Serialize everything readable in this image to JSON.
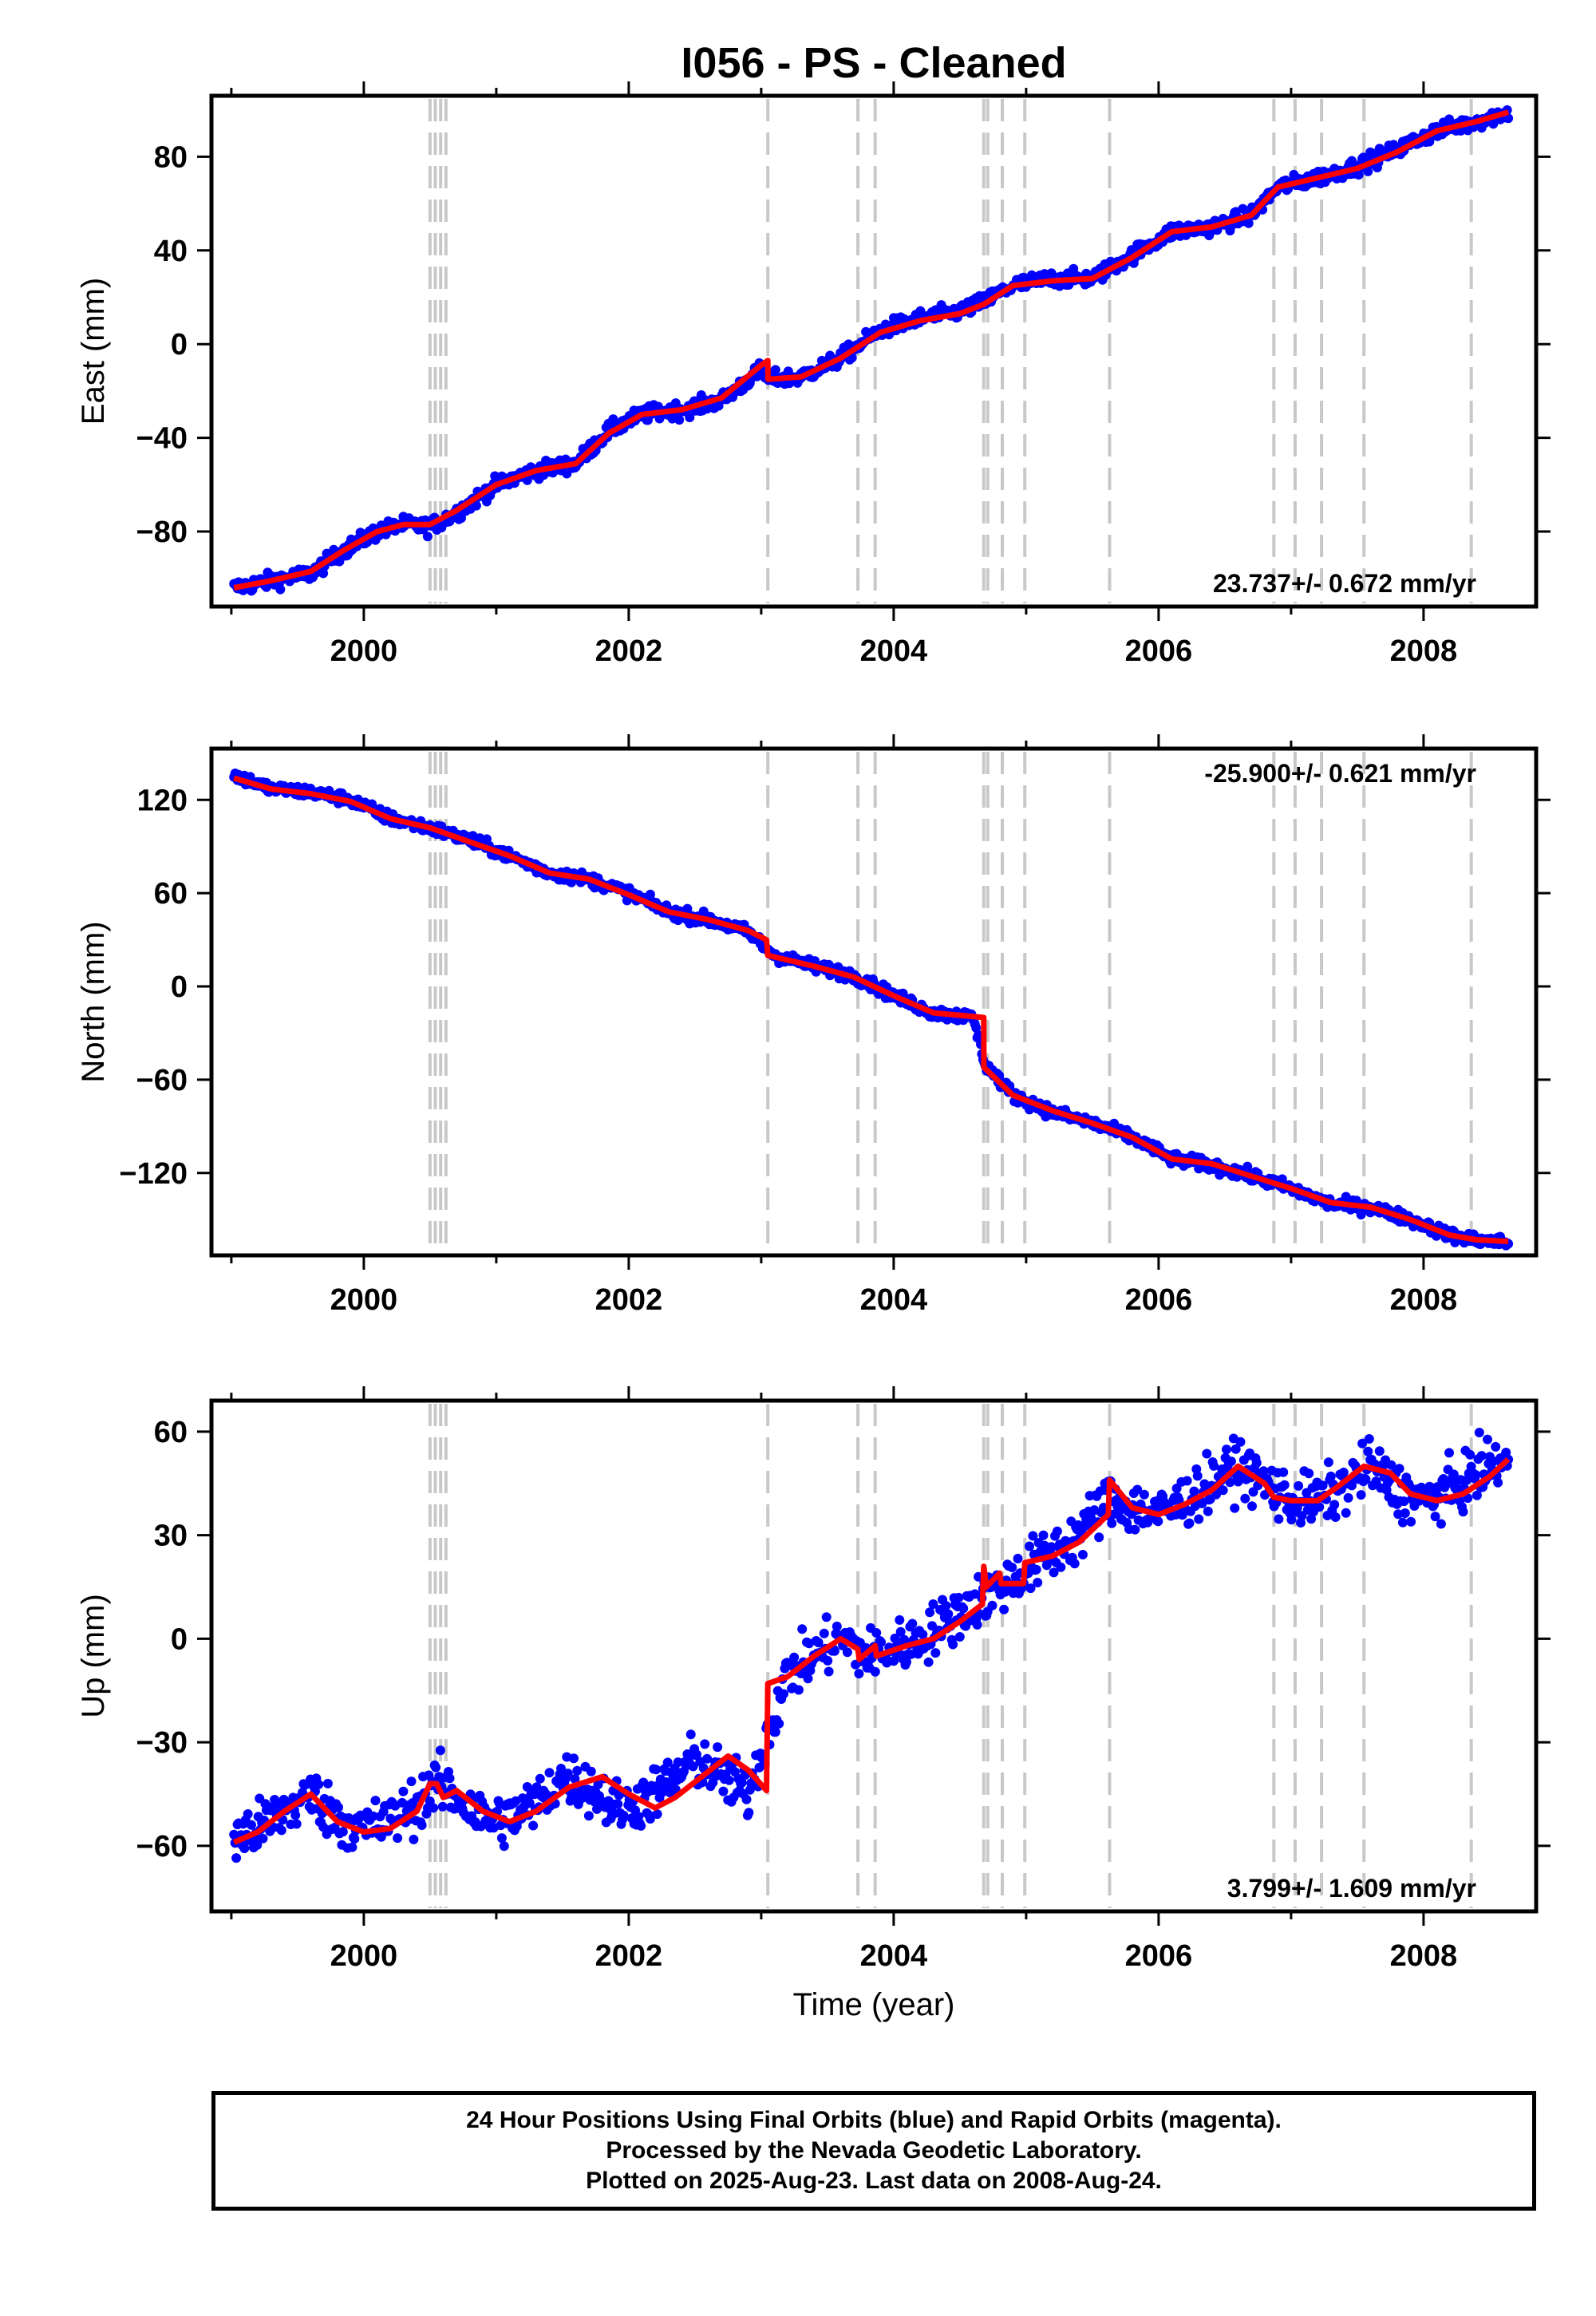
{
  "title": "I056  - PS - Cleaned",
  "footer": {
    "line1": "24 Hour Positions Using Final Orbits (blue) and Rapid Orbits (magenta).",
    "line2": "Processed by the Nevada Geodetic Laboratory.",
    "line3": "Plotted on 2025-Aug-23. Last data on 2008-Aug-24."
  },
  "colors": {
    "observations": "#0000ff",
    "model_fit": "#ff0000",
    "events": "#c8c8c8",
    "frame": "#000000"
  },
  "event_lines_year": [
    2000.5,
    2000.54,
    2000.58,
    2000.62,
    2003.05,
    2003.73,
    2003.86,
    2004.68,
    2004.71,
    2004.82,
    2004.99,
    2005.63,
    2006.87,
    2007.03,
    2007.23,
    2007.55,
    2008.36
  ],
  "chart_data": [
    {
      "type": "scatter",
      "ylabel": "East (mm)",
      "xlabel": "",
      "xlim": [
        1998.85,
        2008.85
      ],
      "ylim": [
        -112,
        106
      ],
      "xticks": [
        2000,
        2002,
        2004,
        2006,
        2008
      ],
      "yticks": [
        -80,
        -40,
        0,
        40,
        80
      ],
      "rate_label": "23.737+/- 0.672 mm/yr",
      "rate_position": "bottom-right",
      "series": [
        {
          "role": "observations",
          "x": [
            1999.02,
            1999.3,
            1999.6,
            1999.85,
            2000.1,
            2000.3,
            2000.5,
            2000.7,
            2001.0,
            2001.3,
            2001.6,
            2001.85,
            2002.1,
            2002.4,
            2002.7,
            2003.0,
            2003.06,
            2003.3,
            2003.6,
            2003.9,
            2004.2,
            2004.5,
            2004.68,
            2004.9,
            2005.2,
            2005.5,
            2005.8,
            2006.1,
            2006.4,
            2006.7,
            2006.9,
            2007.2,
            2007.5,
            2007.8,
            2008.1,
            2008.4,
            2008.64
          ],
          "y": [
            -104,
            -101,
            -98,
            -88,
            -80,
            -77,
            -78,
            -72,
            -60,
            -54,
            -51,
            -37,
            -30,
            -28,
            -24,
            -11,
            -15,
            -14,
            -6,
            6,
            11,
            14,
            18,
            25,
            28,
            28,
            38,
            48,
            50,
            55,
            67,
            71,
            76,
            83,
            91,
            95,
            99
          ]
        },
        {
          "role": "model",
          "x": [
            1999.02,
            1999.3,
            1999.6,
            1999.85,
            2000.1,
            2000.3,
            2000.5,
            2000.7,
            2001.0,
            2001.3,
            2001.6,
            2001.85,
            2002.1,
            2002.4,
            2002.7,
            2003.0,
            2003.05,
            2003.051,
            2003.3,
            2003.6,
            2003.9,
            2004.2,
            2004.5,
            2004.68,
            2004.9,
            2005.2,
            2005.5,
            2005.8,
            2006.1,
            2006.4,
            2006.7,
            2006.9,
            2007.2,
            2007.5,
            2007.8,
            2008.1,
            2008.4,
            2008.64
          ],
          "y": [
            -104,
            -101,
            -97,
            -88,
            -80,
            -77,
            -77,
            -71,
            -60,
            -54,
            -51,
            -38,
            -30,
            -28,
            -23,
            -9,
            -7,
            -15,
            -14,
            -6,
            5,
            10,
            13,
            17,
            25,
            27,
            28,
            37,
            48,
            50,
            55,
            67,
            71,
            75,
            82,
            91,
            95,
            99
          ]
        }
      ]
    },
    {
      "type": "scatter",
      "ylabel": "North (mm)",
      "xlabel": "",
      "xlim": [
        1998.85,
        2008.85
      ],
      "ylim": [
        -173,
        153
      ],
      "xticks": [
        2000,
        2002,
        2004,
        2006,
        2008
      ],
      "yticks": [
        -120,
        -60,
        0,
        60,
        120
      ],
      "rate_label": "-25.900+/- 0.621 mm/yr",
      "rate_position": "top-right",
      "series": [
        {
          "role": "observations",
          "x": [
            1999.02,
            1999.3,
            1999.6,
            1999.9,
            2000.2,
            2000.5,
            2000.8,
            2001.1,
            2001.4,
            2001.7,
            2002.0,
            2002.3,
            2002.6,
            2002.9,
            2003.1,
            2003.4,
            2003.7,
            2004.0,
            2004.3,
            2004.6,
            2004.69,
            2004.9,
            2005.2,
            2005.5,
            2005.8,
            2006.1,
            2006.4,
            2006.7,
            2007.0,
            2007.3,
            2007.6,
            2007.9,
            2008.2,
            2008.4,
            2008.64
          ],
          "y": [
            136,
            127,
            125,
            120,
            108,
            102,
            94,
            84,
            73,
            69,
            60,
            48,
            43,
            35,
            20,
            13,
            7,
            -6,
            -17,
            -20,
            -50,
            -70,
            -81,
            -88,
            -97,
            -111,
            -115,
            -122,
            -130,
            -140,
            -142,
            -150,
            -160,
            -163,
            -165
          ]
        },
        {
          "role": "model",
          "x": [
            1999.02,
            1999.3,
            1999.6,
            1999.9,
            2000.2,
            2000.5,
            2000.8,
            2001.1,
            2001.4,
            2001.7,
            2002.0,
            2002.3,
            2002.6,
            2002.9,
            2003.04,
            2003.05,
            2003.4,
            2003.7,
            2004.0,
            2004.3,
            2004.68,
            2004.681,
            2004.9,
            2005.2,
            2005.5,
            2005.8,
            2006.1,
            2006.4,
            2006.7,
            2007.0,
            2007.3,
            2007.6,
            2007.9,
            2008.2,
            2008.4,
            2008.64
          ],
          "y": [
            134,
            127,
            124,
            119,
            108,
            102,
            93,
            84,
            73,
            69,
            59,
            48,
            43,
            36,
            30,
            20,
            13,
            6,
            -6,
            -17,
            -20,
            -52,
            -70,
            -80,
            -88,
            -97,
            -111,
            -114,
            -122,
            -130,
            -139,
            -142,
            -150,
            -160,
            -163,
            -164
          ]
        }
      ]
    },
    {
      "type": "scatter",
      "ylabel": "Up (mm)",
      "xlabel": "Time (year)",
      "xlim": [
        1998.85,
        2008.85
      ],
      "ylim": [
        -79,
        69
      ],
      "xticks": [
        2000,
        2002,
        2004,
        2006,
        2008
      ],
      "yticks": [
        -60,
        -30,
        0,
        30,
        60
      ],
      "rate_label": "3.799+/- 1.609 mm/yr",
      "rate_position": "bottom-right",
      "series": [
        {
          "role": "observations",
          "x": [
            1999.02,
            1999.2,
            1999.4,
            1999.6,
            1999.8,
            2000.0,
            2000.2,
            2000.4,
            2000.55,
            2000.7,
            2000.9,
            2001.1,
            2001.3,
            2001.5,
            2001.7,
            2001.9,
            2002.1,
            2002.3,
            2002.5,
            2002.7,
            2002.9,
            2003.2,
            2003.4,
            2003.6,
            2003.8,
            2004.0,
            2004.2,
            2004.4,
            2004.6,
            2004.8,
            2005.0,
            2005.2,
            2005.4,
            2005.6,
            2005.8,
            2006.0,
            2006.2,
            2006.4,
            2006.6,
            2006.8,
            2007.0,
            2007.2,
            2007.4,
            2007.6,
            2007.8,
            2008.0,
            2008.2,
            2008.4,
            2008.64
          ],
          "y": [
            -58,
            -55,
            -50,
            -45,
            -52,
            -55,
            -53,
            -48,
            -42,
            -46,
            -52,
            -52,
            -48,
            -40,
            -43,
            -49,
            -47,
            -42,
            -35,
            -40,
            -45,
            -10,
            -5,
            0,
            -5,
            -3,
            0,
            5,
            10,
            15,
            20,
            25,
            30,
            40,
            38,
            36,
            40,
            45,
            50,
            45,
            40,
            40,
            44,
            50,
            43,
            40,
            43,
            48,
            52
          ]
        },
        {
          "role": "model",
          "x": [
            1999.02,
            1999.2,
            1999.4,
            1999.6,
            1999.8,
            2000.0,
            2000.2,
            2000.4,
            2000.5,
            2000.55,
            2000.6,
            2000.7,
            2000.9,
            2001.1,
            2001.3,
            2001.55,
            2001.8,
            2002.0,
            2002.2,
            2002.35,
            2002.55,
            2002.75,
            2002.9,
            2003.04,
            2003.05,
            2003.2,
            2003.4,
            2003.6,
            2003.73,
            2003.74,
            2003.86,
            2003.87,
            2004.1,
            2004.3,
            2004.5,
            2004.67,
            2004.68,
            2004.7,
            2004.8,
            2004.81,
            2004.98,
            2004.99,
            2005.2,
            2005.4,
            2005.62,
            2005.63,
            2005.8,
            2006.0,
            2006.2,
            2006.4,
            2006.6,
            2006.8,
            2006.87,
            2007.0,
            2007.2,
            2007.35,
            2007.55,
            2007.75,
            2007.9,
            2008.1,
            2008.3,
            2008.5,
            2008.64
          ],
          "y": [
            -59,
            -56,
            -50,
            -45,
            -53,
            -56,
            -55,
            -50,
            -42,
            -42,
            -46,
            -44,
            -50,
            -53,
            -50,
            -43,
            -40,
            -45,
            -49,
            -46,
            -40,
            -34,
            -38,
            -44,
            -13,
            -11,
            -5,
            0,
            -3,
            -6,
            -2,
            -5,
            -2,
            0,
            5,
            10,
            21,
            15,
            19,
            16,
            16,
            22,
            24,
            28,
            36,
            46,
            38,
            36,
            39,
            43,
            50,
            45,
            41,
            40,
            40,
            44,
            50,
            48,
            42,
            40,
            42,
            47,
            52
          ]
        }
      ]
    }
  ]
}
